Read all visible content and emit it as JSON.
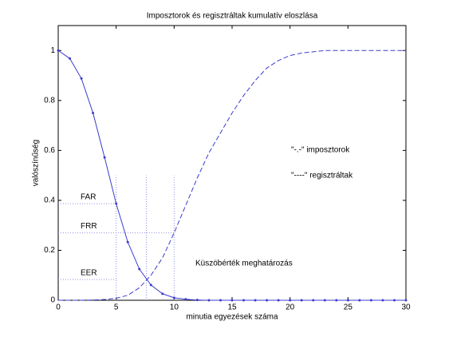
{
  "chart_data": {
    "type": "line",
    "title": "Imposztorok és regisztráltak kumulatív eloszlása",
    "x_label": "minutia egyezések száma",
    "y_label": "valószínűség",
    "x": [
      0,
      1,
      2,
      3,
      4,
      5,
      6,
      7,
      8,
      9,
      10,
      11,
      12,
      13,
      14,
      15,
      16,
      17,
      18,
      19,
      20,
      21,
      22,
      23,
      24,
      25,
      26,
      27,
      28,
      29,
      30
    ],
    "series": [
      {
        "name": "\"-.-\" imposztorok",
        "color": "#3c3ccf",
        "style": "solid",
        "markers": true,
        "values": [
          1.0,
          0.968,
          0.888,
          0.75,
          0.572,
          0.387,
          0.233,
          0.125,
          0.061,
          0.026,
          0.01,
          0.004,
          0.001,
          0,
          0,
          0,
          0,
          0,
          0,
          0,
          0,
          0,
          0,
          0,
          0,
          0,
          0,
          0,
          0,
          0,
          0
        ]
      },
      {
        "name": "\"----\" regisztráltak",
        "color": "#3c3ccf",
        "style": "dashed",
        "markers": false,
        "values": [
          0,
          0,
          0,
          0.001,
          0.003,
          0.008,
          0.02,
          0.05,
          0.1,
          0.17,
          0.27,
          0.38,
          0.49,
          0.59,
          0.67,
          0.75,
          0.82,
          0.88,
          0.93,
          0.96,
          0.98,
          0.99,
          0.995,
          1,
          1,
          1,
          1,
          1,
          1,
          1,
          1
        ]
      }
    ],
    "annotations": [
      {
        "text": "FAR",
        "x": 5,
        "y": 0.387
      },
      {
        "text": "FRR",
        "x": 10,
        "y": 0.27
      },
      {
        "text": "EER",
        "x": 5,
        "y": 0.083
      }
    ],
    "reference_lines": {
      "x": [
        5,
        7.6,
        10
      ],
      "y_top": 0.5
    },
    "note": "Küszöbérték meghatározás",
    "xlim": [
      0,
      30
    ],
    "xticks": [
      0,
      5,
      10,
      15,
      20,
      25,
      30
    ],
    "ylim": [
      0,
      1.1
    ],
    "yticks": [
      0,
      0.2,
      0.4,
      0.6,
      0.8,
      1
    ],
    "grid": false
  }
}
